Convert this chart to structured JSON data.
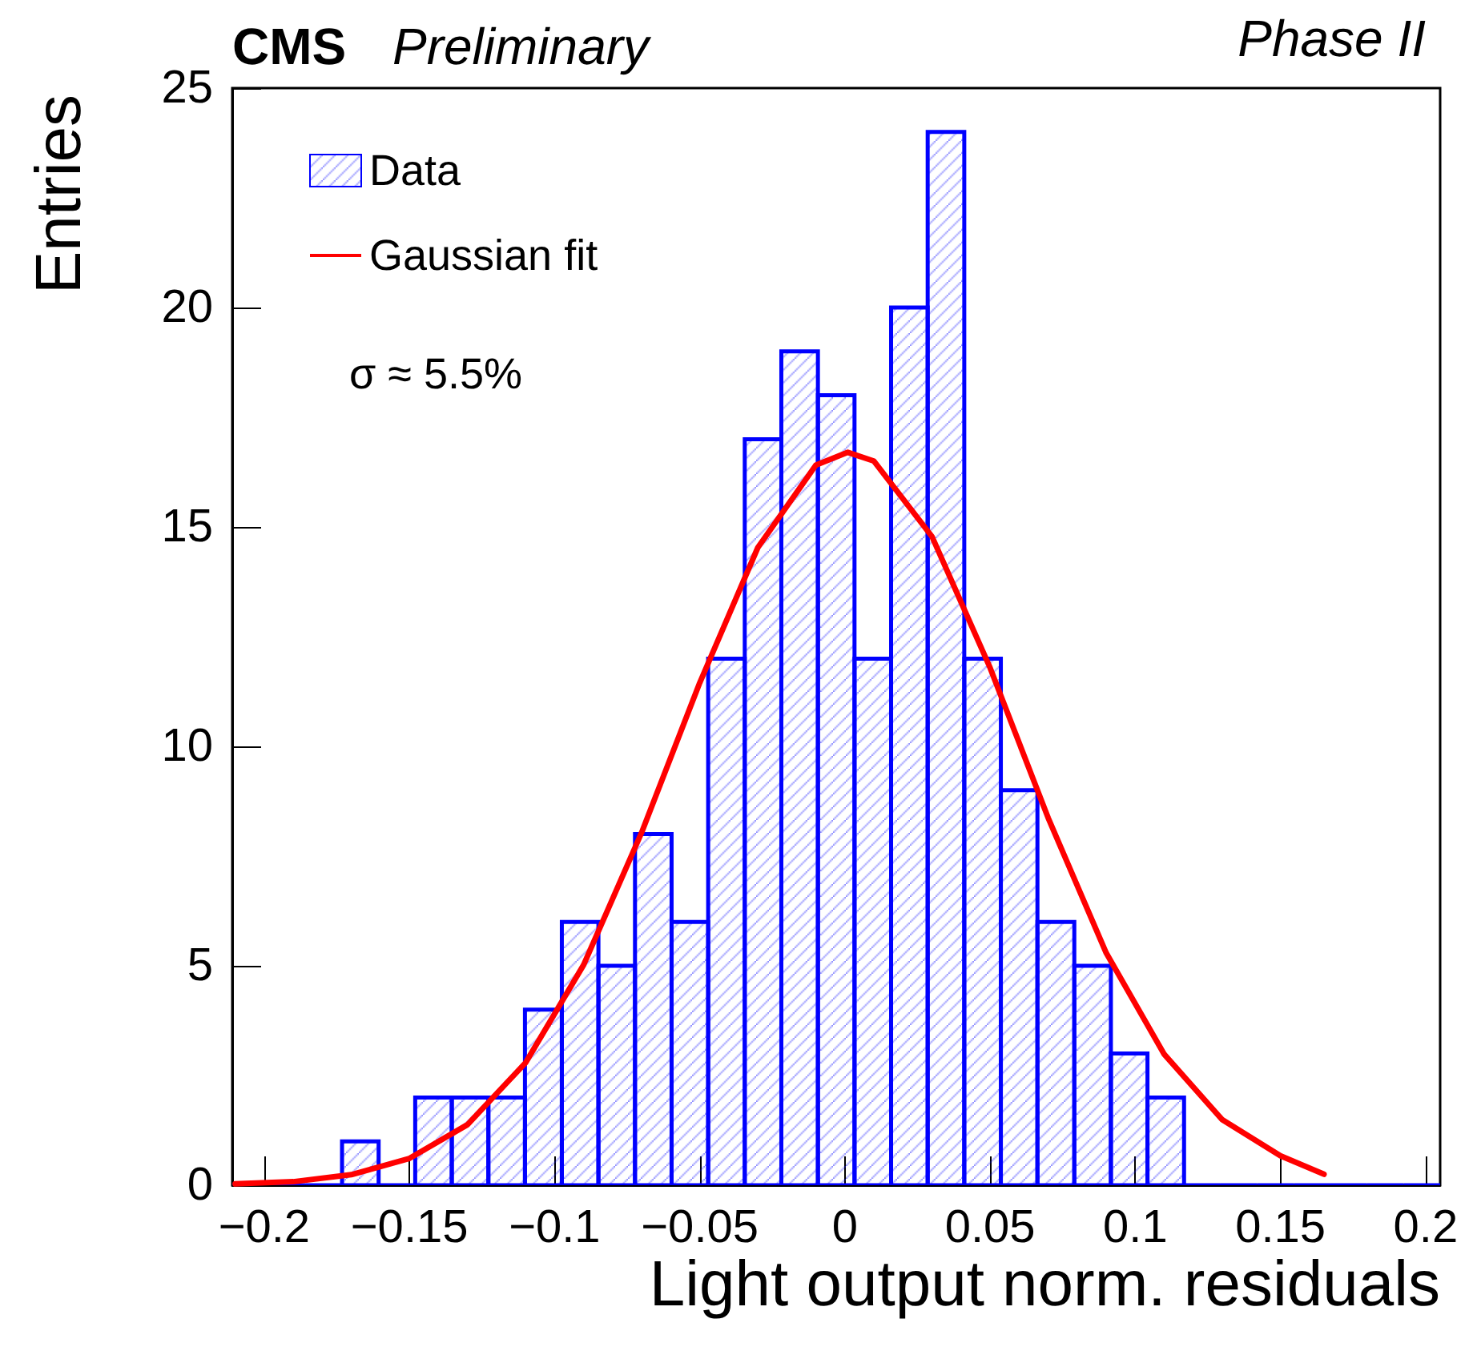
{
  "chart_data": {
    "type": "histogram",
    "title": "CMS",
    "subtitle": "Preliminary",
    "xlabel": "Light output norm. residuals",
    "ylabel": "Entries",
    "annotations": [
      "Phase II",
      "σ ≈ 5.5%"
    ],
    "bins": [
      -0.211,
      -0.1984,
      -0.1858,
      -0.1732,
      -0.1606,
      -0.148,
      -0.1354,
      -0.1228,
      -0.1102,
      -0.0975,
      -0.0849,
      -0.0723,
      -0.0597,
      -0.0471,
      -0.0345,
      -0.0219,
      -0.0093,
      0.0033,
      0.0159,
      0.0285,
      0.0411,
      0.0537,
      0.0663,
      0.079,
      0.0916,
      0.1042,
      0.1168,
      0.1294,
      0.142,
      0.1546,
      0.1672,
      0.1798,
      0.1924,
      0.205
    ],
    "series": [
      {
        "name": "Data",
        "color": "#0000ff",
        "values": [
          0,
          0,
          0,
          1,
          0,
          2,
          2,
          2,
          4,
          6,
          5,
          8,
          6,
          12,
          17,
          19,
          18,
          12,
          20,
          24,
          12,
          9,
          6,
          5,
          3,
          2,
          0,
          0,
          0,
          0,
          0,
          0,
          0
        ]
      },
      {
        "name": "Gaussian fit",
        "type": "line",
        "color": "#ff0000",
        "x": [
          -0.21,
          -0.19,
          -0.17,
          -0.15,
          -0.13,
          -0.11,
          -0.09,
          -0.07,
          -0.05,
          -0.03,
          -0.01,
          0.001,
          0.01,
          0.03,
          0.05,
          0.07,
          0.09,
          0.11,
          0.13,
          0.15,
          0.165
        ],
        "values": [
          0.03,
          0.08,
          0.24,
          0.61,
          1.38,
          2.79,
          5.02,
          8.04,
          11.45,
          14.53,
          16.41,
          16.7,
          16.5,
          14.78,
          11.79,
          8.37,
          5.29,
          2.98,
          1.49,
          0.67,
          0.25
        ]
      }
    ],
    "xlim": [
      -0.211,
      0.205
    ],
    "xticks": [
      {
        "value": -0.2,
        "label": "−0.2"
      },
      {
        "value": -0.15,
        "label": "−0.15"
      },
      {
        "value": -0.1,
        "label": "−0.1"
      },
      {
        "value": -0.05,
        "label": "−0.05"
      },
      0,
      0.05,
      0.1,
      0.15,
      0.2
    ],
    "ylim": [
      0,
      25
    ],
    "yticks": [
      0,
      5,
      10,
      15,
      20,
      25
    ],
    "grid": false,
    "legend": "top left",
    "marker": "none",
    "line_style": "solid"
  }
}
